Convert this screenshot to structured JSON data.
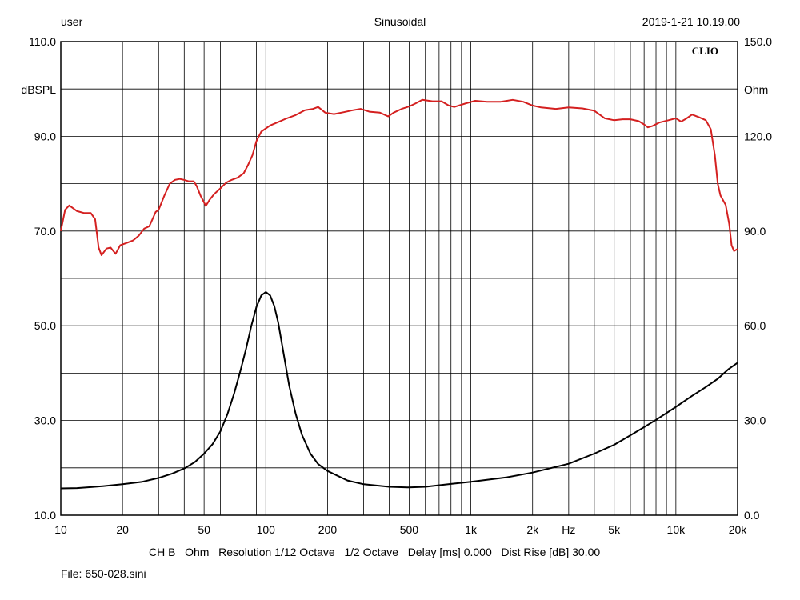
{
  "header": {
    "left": "user",
    "center": "Sinusoidal",
    "right": "2019-1-21 10.19.00"
  },
  "footer": {
    "info_line": "CH B   Ohm   Resolution 1/12 Octave   1/2 Octave   Delay [ms] 0.000   Dist Rise [dB] 30.00",
    "file_line": "File: 650-028.sini"
  },
  "chart_data": {
    "type": "line",
    "brand_label": "CLIO",
    "x_scale": "log",
    "xlim": [
      10,
      20000
    ],
    "x_tick_labels": [
      {
        "value": 10,
        "label": "10"
      },
      {
        "value": 20,
        "label": "20"
      },
      {
        "value": 50,
        "label": "50"
      },
      {
        "value": 100,
        "label": "100"
      },
      {
        "value": 200,
        "label": "200"
      },
      {
        "value": 500,
        "label": "500"
      },
      {
        "value": 1000,
        "label": "1k"
      },
      {
        "value": 2000,
        "label": "2k"
      },
      {
        "value": 5000,
        "label": "5k"
      },
      {
        "value": 10000,
        "label": "10k"
      },
      {
        "value": 20000,
        "label": "20k"
      }
    ],
    "x_unit_label": "Hz",
    "x_unit_label_at": 3000,
    "left_axis": {
      "label": "dBSPL",
      "ylim": [
        10,
        110
      ],
      "tick_labels": [
        "10.0",
        "30.0",
        "50.0",
        "70.0",
        "90.0",
        "110.0"
      ]
    },
    "right_axis": {
      "label": "Ohm",
      "ylim": [
        0,
        150
      ],
      "tick_labels": [
        "0.0",
        "30.0",
        "60.0",
        "90.0",
        "120.0",
        "150.0"
      ]
    },
    "grid": true,
    "series": [
      {
        "axis": "left",
        "color": "#d42020",
        "points": [
          [
            10,
            70
          ],
          [
            10.5,
            74.5
          ],
          [
            11,
            75.4
          ],
          [
            12,
            74.2
          ],
          [
            13,
            73.8
          ],
          [
            14,
            73.8
          ],
          [
            14.7,
            72.5
          ],
          [
            15.3,
            66.5
          ],
          [
            15.8,
            64.9
          ],
          [
            16.7,
            66.3
          ],
          [
            17.5,
            66.5
          ],
          [
            18.5,
            65.2
          ],
          [
            19.5,
            67
          ],
          [
            21,
            67.5
          ],
          [
            22.5,
            68
          ],
          [
            24,
            69
          ],
          [
            25.5,
            70.5
          ],
          [
            27,
            71
          ],
          [
            28,
            72.5
          ],
          [
            29,
            74
          ],
          [
            30,
            74.5
          ],
          [
            32,
            77.5
          ],
          [
            34,
            80
          ],
          [
            36,
            80.8
          ],
          [
            38,
            81
          ],
          [
            40,
            80.8
          ],
          [
            42,
            80.5
          ],
          [
            44.5,
            80.5
          ],
          [
            46,
            79.5
          ],
          [
            48,
            77.5
          ],
          [
            51,
            75.3
          ],
          [
            53,
            76.5
          ],
          [
            56,
            77.8
          ],
          [
            60,
            79
          ],
          [
            64,
            80.2
          ],
          [
            68,
            80.8
          ],
          [
            73,
            81.3
          ],
          [
            78,
            82.2
          ],
          [
            82,
            84
          ],
          [
            86,
            86
          ],
          [
            90,
            89
          ],
          [
            95,
            91
          ],
          [
            105,
            92.3
          ],
          [
            115,
            93
          ],
          [
            125,
            93.7
          ],
          [
            140,
            94.5
          ],
          [
            155,
            95.5
          ],
          [
            170,
            95.8
          ],
          [
            180,
            96.2
          ],
          [
            195,
            95
          ],
          [
            215,
            94.7
          ],
          [
            240,
            95.1
          ],
          [
            265,
            95.5
          ],
          [
            290,
            95.8
          ],
          [
            320,
            95.2
          ],
          [
            360,
            95
          ],
          [
            395,
            94.2
          ],
          [
            420,
            95
          ],
          [
            460,
            95.8
          ],
          [
            500,
            96.3
          ],
          [
            540,
            97
          ],
          [
            580,
            97.7
          ],
          [
            650,
            97.4
          ],
          [
            720,
            97.4
          ],
          [
            780,
            96.5
          ],
          [
            830,
            96.2
          ],
          [
            950,
            97
          ],
          [
            1050,
            97.5
          ],
          [
            1200,
            97.3
          ],
          [
            1400,
            97.3
          ],
          [
            1600,
            97.7
          ],
          [
            1800,
            97.3
          ],
          [
            2000,
            96.5
          ],
          [
            2200,
            96.1
          ],
          [
            2600,
            95.8
          ],
          [
            3000,
            96.1
          ],
          [
            3500,
            95.9
          ],
          [
            4000,
            95.4
          ],
          [
            4500,
            93.8
          ],
          [
            5000,
            93.4
          ],
          [
            5500,
            93.6
          ],
          [
            6000,
            93.6
          ],
          [
            6600,
            93.2
          ],
          [
            7000,
            92.5
          ],
          [
            7300,
            91.9
          ],
          [
            7700,
            92.2
          ],
          [
            8300,
            92.9
          ],
          [
            9200,
            93.4
          ],
          [
            10000,
            93.8
          ],
          [
            10600,
            93.1
          ],
          [
            11200,
            93.7
          ],
          [
            12000,
            94.6
          ],
          [
            13000,
            94
          ],
          [
            14000,
            93.4
          ],
          [
            14800,
            91.5
          ],
          [
            15500,
            86
          ],
          [
            16000,
            80
          ],
          [
            16500,
            77.5
          ],
          [
            17500,
            75.5
          ],
          [
            18200,
            71.5
          ],
          [
            18700,
            67
          ],
          [
            19200,
            65.8
          ],
          [
            20000,
            66.2
          ]
        ]
      },
      {
        "axis": "right",
        "color": "#000000",
        "points": [
          [
            10,
            8.5
          ],
          [
            12,
            8.6
          ],
          [
            14,
            8.9
          ],
          [
            16,
            9.2
          ],
          [
            20,
            9.8
          ],
          [
            25,
            10.6
          ],
          [
            30,
            11.8
          ],
          [
            35,
            13.2
          ],
          [
            40,
            14.8
          ],
          [
            45,
            16.8
          ],
          [
            50,
            19.5
          ],
          [
            55,
            22.5
          ],
          [
            60,
            26.5
          ],
          [
            65,
            32
          ],
          [
            70,
            38.5
          ],
          [
            75,
            45.5
          ],
          [
            80,
            52.5
          ],
          [
            85,
            60
          ],
          [
            90,
            66
          ],
          [
            95,
            69.6
          ],
          [
            100,
            70.7
          ],
          [
            105,
            69.6
          ],
          [
            110,
            66.2
          ],
          [
            115,
            61
          ],
          [
            120,
            54
          ],
          [
            130,
            41
          ],
          [
            140,
            32
          ],
          [
            150,
            25.5
          ],
          [
            165,
            19.5
          ],
          [
            180,
            16.2
          ],
          [
            200,
            14
          ],
          [
            250,
            11
          ],
          [
            300,
            9.8
          ],
          [
            400,
            9
          ],
          [
            500,
            8.8
          ],
          [
            600,
            9
          ],
          [
            800,
            9.9
          ],
          [
            1000,
            10.6
          ],
          [
            1500,
            12
          ],
          [
            2000,
            13.5
          ],
          [
            3000,
            16.3
          ],
          [
            4000,
            19.5
          ],
          [
            5000,
            22.3
          ],
          [
            6000,
            25.3
          ],
          [
            7000,
            27.9
          ],
          [
            8000,
            30.2
          ],
          [
            10000,
            34.3
          ],
          [
            12000,
            37.8
          ],
          [
            14000,
            40.6
          ],
          [
            16000,
            43.2
          ],
          [
            18000,
            46.2
          ],
          [
            20000,
            48.3
          ]
        ]
      }
    ]
  }
}
